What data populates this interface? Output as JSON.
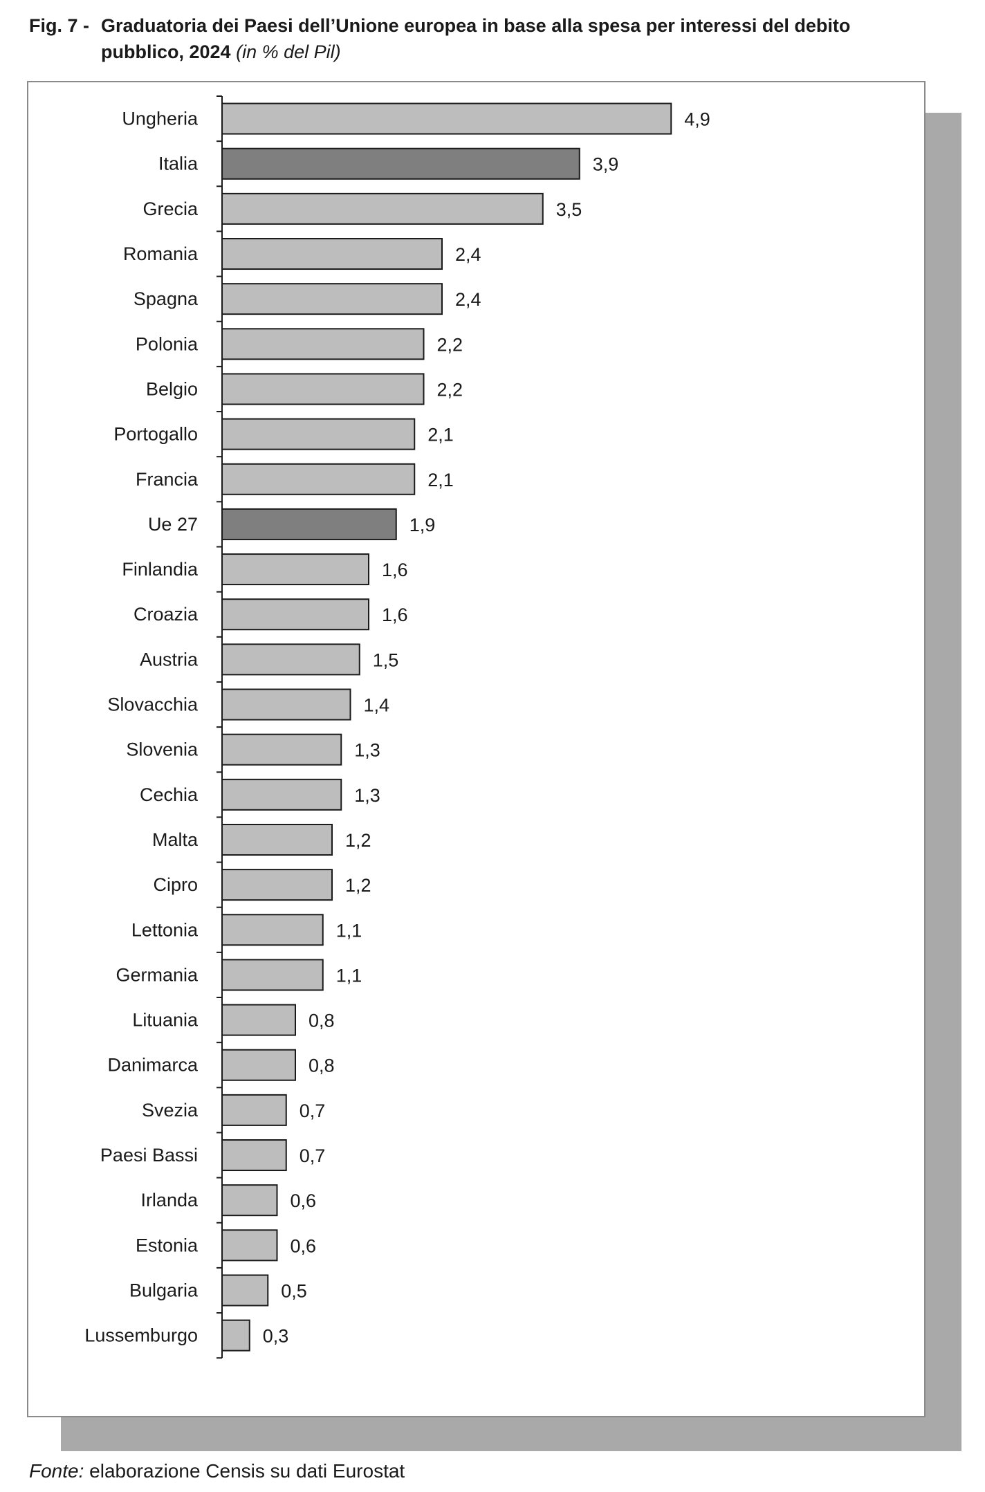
{
  "title": {
    "prefix": "Fig. 7 -",
    "line1": "Graduatoria dei Paesi dell’Unione europea in base alla spesa per interessi del debito",
    "line2": "pubblico, 2024",
    "unit": "(in % del Pil)"
  },
  "source": {
    "label": "Fonte:",
    "text": "elaborazione Censis su dati Eurostat"
  },
  "colors": {
    "bar_default": "#bdbdbd",
    "bar_highlight": "#7f7f7f",
    "bar_outline": "#1a1a1a",
    "shadow": "#a9a9a9"
  },
  "chart_data": {
    "type": "bar",
    "orientation": "horizontal",
    "title": "Graduatoria dei Paesi dell’Unione europea in base alla spesa per interessi del debito pubblico, 2024",
    "unit": "(in % del Pil)",
    "xlim": [
      0,
      5.2
    ],
    "grid": false,
    "legend": "none",
    "categories": [
      "Ungheria",
      "Italia",
      "Grecia",
      "Romania",
      "Spagna",
      "Polonia",
      "Belgio",
      "Portogallo",
      "Francia",
      "Ue 27",
      "Finlandia",
      "Croazia",
      "Austria",
      "Slovacchia",
      "Slovenia",
      "Cechia",
      "Malta",
      "Cipro",
      "Lettonia",
      "Germania",
      "Lituania",
      "Danimarca",
      "Svezia",
      "Paesi Bassi",
      "Irlanda",
      "Estonia",
      "Bulgaria",
      "Lussemburgo"
    ],
    "values": [
      4.9,
      3.9,
      3.5,
      2.4,
      2.4,
      2.2,
      2.2,
      2.1,
      2.1,
      1.9,
      1.6,
      1.6,
      1.5,
      1.4,
      1.3,
      1.3,
      1.2,
      1.2,
      1.1,
      1.1,
      0.8,
      0.8,
      0.7,
      0.7,
      0.6,
      0.6,
      0.5,
      0.3
    ],
    "value_labels": [
      "4,9",
      "3,9",
      "3,5",
      "2,4",
      "2,4",
      "2,2",
      "2,2",
      "2,1",
      "2,1",
      "1,9",
      "1,6",
      "1,6",
      "1,5",
      "1,4",
      "1,3",
      "1,3",
      "1,2",
      "1,2",
      "1,1",
      "1,1",
      "0,8",
      "0,8",
      "0,7",
      "0,7",
      "0,6",
      "0,6",
      "0,5",
      "0,3"
    ],
    "highlighted": [
      "Italia",
      "Ue 27"
    ]
  }
}
